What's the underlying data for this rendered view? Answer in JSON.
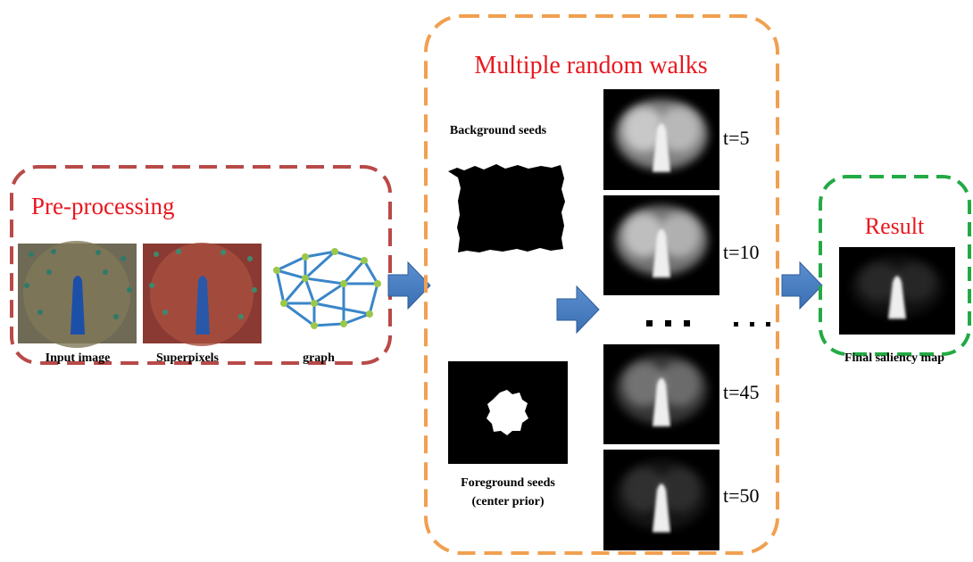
{
  "preprocessing": {
    "title": "Pre-processing",
    "images": [
      {
        "label": "Input image"
      },
      {
        "label": "Superpixels"
      },
      {
        "label": "graph"
      }
    ]
  },
  "random_walks": {
    "title": "Multiple random walks",
    "background_seeds": "Background seeds",
    "foreground_seeds": [
      "Foreground seeds",
      "(center prior)"
    ],
    "iterations": [
      "t=5",
      "t=10",
      "t=45",
      "t=50"
    ]
  },
  "result": {
    "title": "Result",
    "label": "Final saliency map"
  }
}
